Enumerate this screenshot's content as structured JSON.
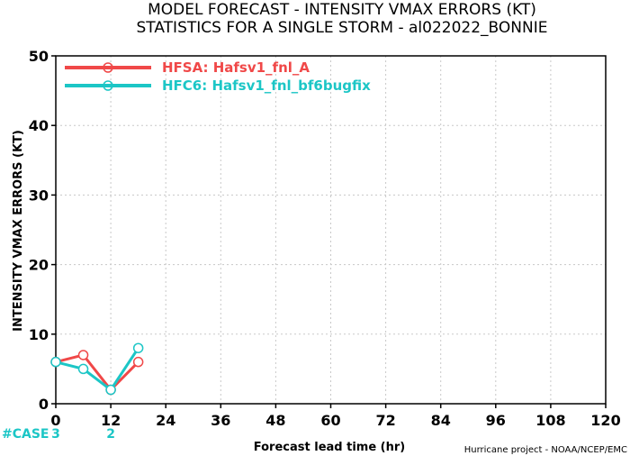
{
  "title_line1": "MODEL FORECAST - INTENSITY VMAX ERRORS (KT)",
  "title_line2": "STATISTICS FOR A SINGLE STORM - al022022_BONNIE",
  "credit": "Hurricane project - NOAA/NCEP/EMC",
  "case_label": "#CASE",
  "colors": {
    "series1": "#f04848",
    "series2": "#1cc6c6",
    "grid": "#c8c8c8",
    "axis": "#000000"
  },
  "chart_data": {
    "type": "line",
    "xlabel": "Forecast lead time (hr)",
    "ylabel": "INTENSITY VMAX ERRORS (KT)",
    "xlim": [
      0,
      120
    ],
    "ylim": [
      0,
      50
    ],
    "xticks": [
      0,
      12,
      24,
      36,
      48,
      60,
      72,
      84,
      96,
      108,
      120
    ],
    "yticks": [
      0,
      10,
      20,
      30,
      40,
      50
    ],
    "grid": true,
    "legend_position": "top-left",
    "series": [
      {
        "name": "HFSA: Hafsv1_fnl_A",
        "color": "#f04848",
        "x": [
          0,
          6,
          12,
          18
        ],
        "y": [
          6,
          7,
          2,
          6
        ]
      },
      {
        "name": "HFC6: Hafsv1_fnl_bf6bugfix",
        "color": "#1cc6c6",
        "x": [
          0,
          6,
          12,
          18
        ],
        "y": [
          6,
          5,
          2,
          8
        ]
      }
    ],
    "case_counts": [
      {
        "x": 0,
        "label": "3"
      },
      {
        "x": 12,
        "label": "2"
      }
    ]
  }
}
